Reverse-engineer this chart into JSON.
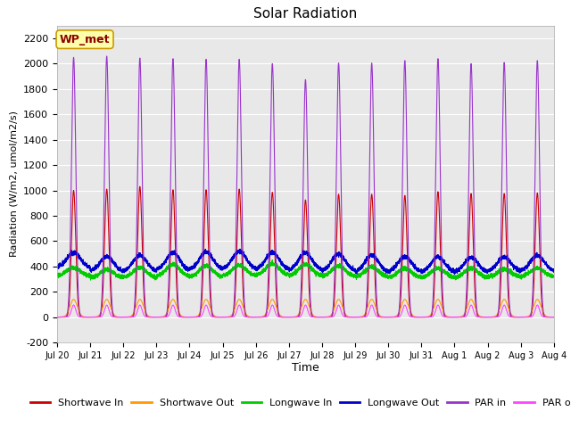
{
  "title": "Solar Radiation",
  "xlabel": "Time",
  "ylabel": "Radiation (W/m2, umol/m2/s)",
  "ylim": [
    -200,
    2300
  ],
  "yticks": [
    -200,
    0,
    200,
    400,
    600,
    800,
    1000,
    1200,
    1400,
    1600,
    1800,
    2000,
    2200
  ],
  "bg_color": "#e8e8e8",
  "fig_bg": "#ffffff",
  "series": {
    "shortwave_in": {
      "color": "#cc0000",
      "label": "Shortwave In"
    },
    "shortwave_out": {
      "color": "#ff9900",
      "label": "Shortwave Out"
    },
    "longwave_in": {
      "color": "#00cc00",
      "label": "Longwave In"
    },
    "longwave_out": {
      "color": "#0000cc",
      "label": "Longwave Out"
    },
    "par_in": {
      "color": "#9933cc",
      "label": "PAR in"
    },
    "par_out": {
      "color": "#ff44ff",
      "label": "PAR out"
    }
  },
  "n_days": 15,
  "pts_per_day": 480,
  "x_tick_labels": [
    "Jul 20",
    "Jul 21",
    "Jul 22",
    "Jul 23",
    "Jul 24",
    "Jul 25",
    "Jul 26",
    "Jul 27",
    "Jul 28",
    "Jul 29",
    "Jul 30",
    "Jul 31",
    "Aug 1",
    "Aug 2",
    "Aug 3",
    "Aug 4"
  ],
  "annotation_text": "WP_met",
  "annotation_color": "#8b0000",
  "annotation_bg": "#ffffaa",
  "day_peaks_sw": [
    1000,
    1010,
    1030,
    1005,
    1005,
    1010,
    985,
    925,
    970,
    970,
    960,
    990,
    975,
    975,
    980
  ],
  "day_peaks_par": [
    2050,
    2060,
    2045,
    2040,
    2035,
    2035,
    2000,
    1875,
    2005,
    2005,
    2025,
    2040,
    2000,
    2010,
    2025
  ],
  "lw_in_bases": [
    325,
    310,
    310,
    320,
    315,
    325,
    330,
    325,
    320,
    315,
    310,
    310,
    310,
    315,
    320
  ],
  "lw_out_bases": [
    390,
    360,
    360,
    370,
    375,
    380,
    375,
    370,
    365,
    355,
    355,
    355,
    355,
    360,
    365
  ],
  "lw_in_peaks": [
    390,
    375,
    390,
    415,
    405,
    410,
    420,
    415,
    405,
    395,
    385,
    385,
    385,
    380,
    385
  ],
  "lw_out_peaks": [
    510,
    480,
    490,
    510,
    515,
    520,
    510,
    505,
    500,
    490,
    480,
    475,
    470,
    475,
    485
  ]
}
